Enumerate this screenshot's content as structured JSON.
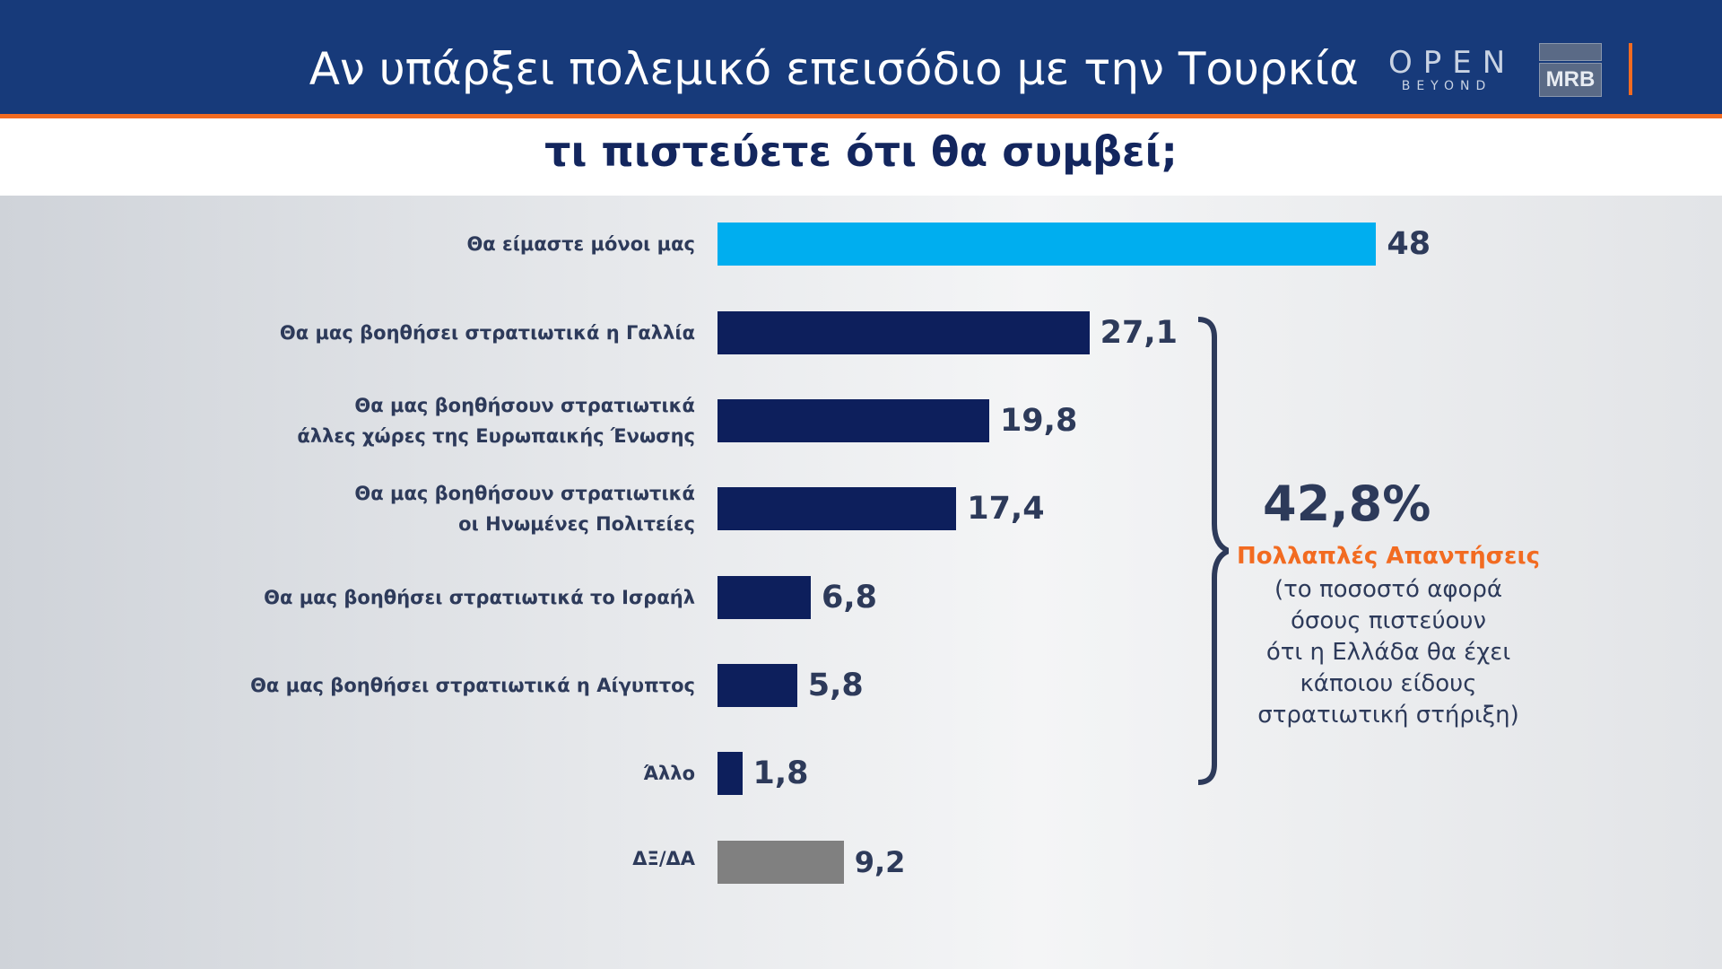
{
  "header": {
    "title": "Αν υπάρξει πολεμικό επεισόδιο με την Τουρκία",
    "logo_open": "OPEN",
    "logo_open_sub": "BEYOND",
    "logo_mrb": "MRB"
  },
  "colors": {
    "header": "#173a7a",
    "accent": "#f26b21",
    "highlight_bar": "#00aeef",
    "bar": "#0d1f5c",
    "dk_bar": "#808080"
  },
  "chart_data": {
    "type": "bar",
    "orientation": "horizontal",
    "title": "τι πιστεύετε ότι θα συμβεί;",
    "categories": [
      "Θα είμαστε μόνοι μας",
      "Θα μας βοηθήσει στρατιωτικά η Γαλλία",
      "Θα μας βοηθήσουν στρατιωτικά\nάλλες χώρες της Ευρωπαικής Ένωσης",
      "Θα μας βοηθήσουν στρατιωτικά\nοι Ηνωμένες Πολιτείες",
      "Θα μας βοηθήσει στρατιωτικά το Ισραήλ",
      "Θα μας βοηθήσει στρατιωτικά η Αίγυπτος",
      "Άλλο",
      "ΔΞ/ΔΑ"
    ],
    "values": [
      48,
      27.1,
      19.8,
      17.4,
      6.8,
      5.8,
      1.8,
      9.2
    ],
    "value_labels": [
      "48",
      "27,1",
      "19,8",
      "17,4",
      "6,8",
      "5,8",
      "1,8",
      "9,2"
    ],
    "bar_colors": [
      "#00aeef",
      "#0d1f5c",
      "#0d1f5c",
      "#0d1f5c",
      "#0d1f5c",
      "#0d1f5c",
      "#0d1f5c",
      "#808080"
    ],
    "grid": false,
    "annotation": {
      "value": "42,8%",
      "label": "Πολλαπλές Απαντήσεις",
      "note": "(το ποσοστό αφορά\nόσους πιστεύουν\nότι η Ελλάδα θα έχει\nκάποιου είδους\nστρατιωτική στήριξη)"
    }
  }
}
